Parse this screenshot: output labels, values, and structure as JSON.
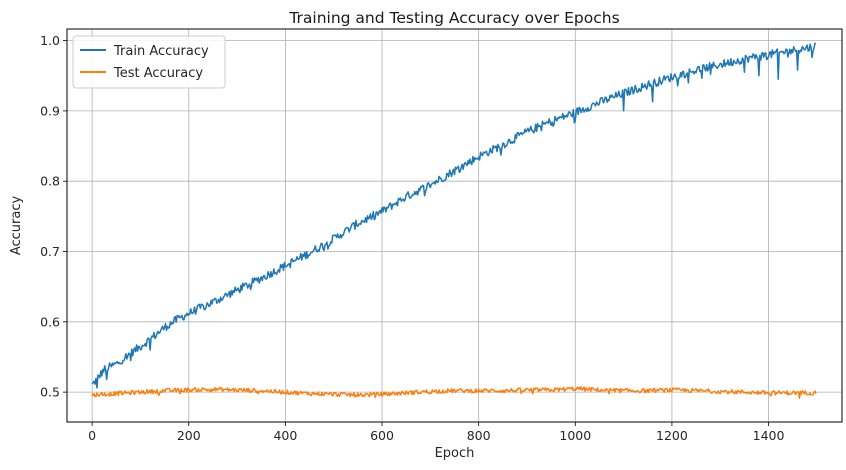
{
  "chart_data": {
    "type": "line",
    "title": "Training and Testing Accuracy over Epochs",
    "xlabel": "Epoch",
    "ylabel": "Accuracy",
    "xlim": [
      -52,
      1552
    ],
    "ylim": [
      0.4575,
      1.0165
    ],
    "xticks": [
      0,
      200,
      400,
      600,
      800,
      1000,
      1200,
      1400
    ],
    "yticks": [
      0.5,
      0.6,
      0.7,
      0.8,
      0.9,
      1.0
    ],
    "ytick_labels": [
      "0.5",
      "0.6",
      "0.7",
      "0.8",
      "0.9",
      "1.0"
    ],
    "grid": true,
    "legend_position": "top-left",
    "series": [
      {
        "name": "Train Accuracy",
        "color": "#1f77b4",
        "x": [
          0,
          25,
          50,
          75,
          100,
          125,
          150,
          175,
          200,
          250,
          300,
          350,
          400,
          450,
          500,
          550,
          600,
          650,
          700,
          750,
          800,
          850,
          900,
          950,
          1000,
          1050,
          1100,
          1150,
          1200,
          1250,
          1300,
          1350,
          1400,
          1450,
          1499
        ],
        "y": [
          0.51,
          0.532,
          0.54,
          0.553,
          0.565,
          0.578,
          0.592,
          0.603,
          0.612,
          0.628,
          0.645,
          0.662,
          0.68,
          0.698,
          0.718,
          0.74,
          0.757,
          0.778,
          0.795,
          0.815,
          0.835,
          0.852,
          0.87,
          0.885,
          0.898,
          0.912,
          0.925,
          0.937,
          0.948,
          0.958,
          0.966,
          0.974,
          0.98,
          0.986,
          0.992
        ],
        "noise": 0.006,
        "dips": [
          [
            10,
            0.506
          ],
          [
            30,
            0.518
          ],
          [
            55,
            0.52
          ],
          [
            80,
            0.545
          ],
          [
            120,
            0.56
          ],
          [
            1100,
            0.9
          ],
          [
            1160,
            0.913
          ],
          [
            1280,
            0.952
          ],
          [
            1350,
            0.955
          ],
          [
            1380,
            0.95
          ],
          [
            1420,
            0.945
          ],
          [
            1460,
            0.958
          ],
          [
            1490,
            0.976
          ]
        ]
      },
      {
        "name": "Test Accuracy",
        "color": "#ff7f0e",
        "x": [
          0,
          50,
          100,
          150,
          200,
          250,
          300,
          350,
          400,
          450,
          500,
          550,
          600,
          650,
          700,
          750,
          800,
          850,
          900,
          950,
          1000,
          1050,
          1100,
          1150,
          1200,
          1250,
          1300,
          1350,
          1400,
          1450,
          1499
        ],
        "y": [
          0.496,
          0.498,
          0.5,
          0.502,
          0.503,
          0.504,
          0.503,
          0.502,
          0.5,
          0.498,
          0.497,
          0.496,
          0.497,
          0.499,
          0.501,
          0.502,
          0.502,
          0.502,
          0.503,
          0.503,
          0.505,
          0.503,
          0.502,
          0.502,
          0.503,
          0.502,
          0.501,
          0.5,
          0.499,
          0.499,
          0.499
        ],
        "noise": 0.003
      }
    ]
  }
}
